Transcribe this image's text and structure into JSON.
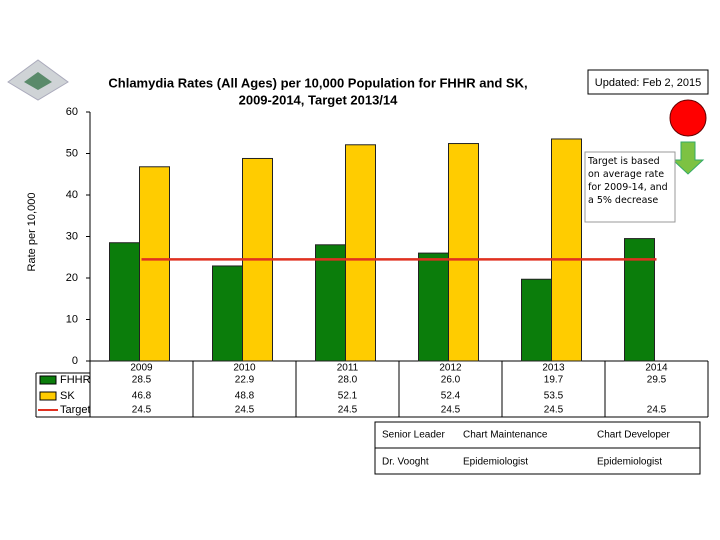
{
  "chart_data": {
    "type": "bar",
    "title": [
      "Chlamydia Rates  (All Ages) per 10,000 Population for FHHR and SK,",
      "2009-2014, Target 2013/14"
    ],
    "y_label": "Rate per 10,000",
    "categories": [
      "2009",
      "2010",
      "2011",
      "2012",
      "2013",
      "2014"
    ],
    "series": [
      {
        "name": "FHHR",
        "color": "#0b7d0b",
        "values": [
          28.5,
          22.9,
          28,
          26,
          19.7,
          29.5
        ],
        "value_labels": [
          "28.5",
          "22.9",
          "28.0",
          "26.0",
          "19.7",
          "29.5"
        ]
      },
      {
        "name": "SK",
        "color": "#ffcc00",
        "values": [
          46.8,
          48.8,
          52.1,
          52.4,
          53.5,
          null
        ]
      },
      {
        "name": "Target",
        "color": "#e03020",
        "type": "line",
        "values": [
          24.5,
          24.5,
          24.5,
          24.5,
          24.5,
          24.5
        ]
      }
    ],
    "ylim": [
      0,
      60
    ],
    "yticks": [
      0,
      10,
      20,
      30,
      40,
      50,
      60
    ],
    "annotation": "Target is based on average rate for 2009-14, and a 5% decrease"
  },
  "header": {
    "updated": "Updated: Feb 2, 2015"
  },
  "footer": {
    "columns": [
      [
        "Senior Leader",
        "Dr. Vooght"
      ],
      [
        "Chart Maintenance",
        "Epidemiologist"
      ],
      [
        "Chart Developer",
        "Epidemiologist"
      ]
    ]
  }
}
